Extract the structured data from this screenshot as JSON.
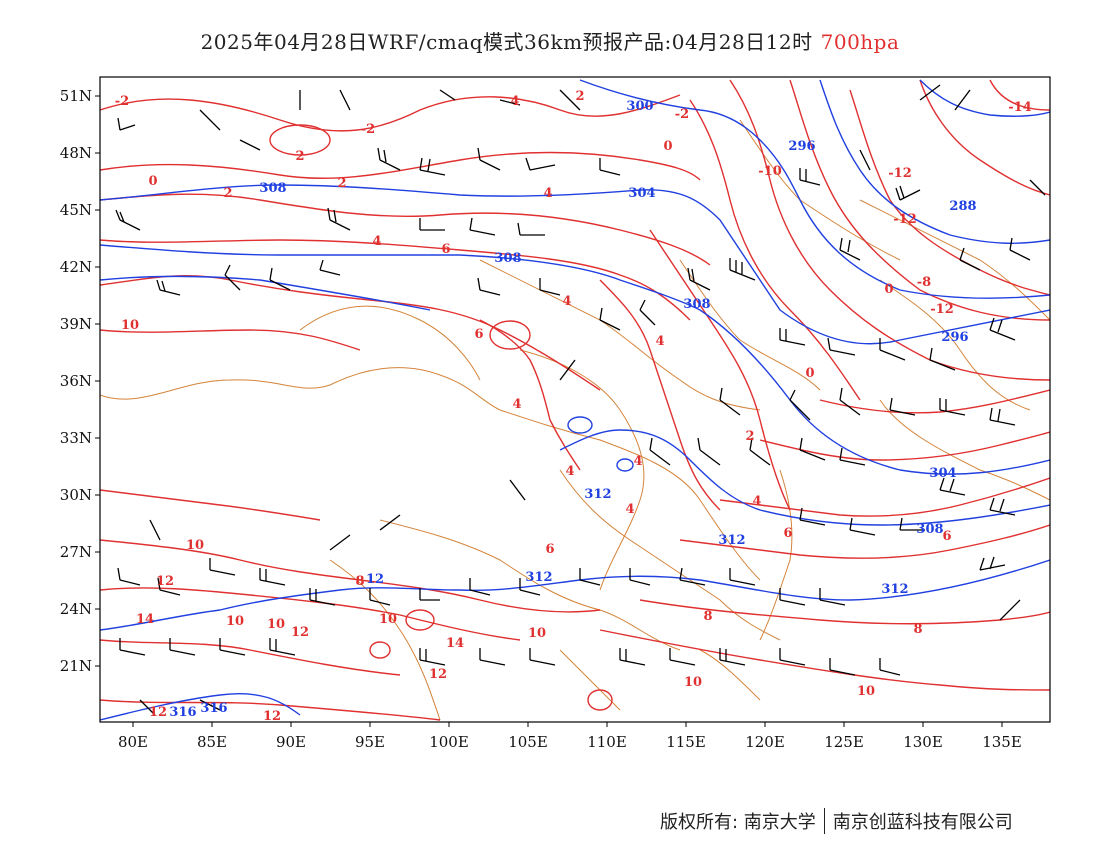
{
  "title": {
    "main": "2025年04月28日WRF/cmaq模式36km预报产品:04月28日12时",
    "level": "700hpa"
  },
  "axes": {
    "lon_labels": [
      "80E",
      "85E",
      "90E",
      "95E",
      "100E",
      "105E",
      "110E",
      "115E",
      "120E",
      "125E",
      "130E",
      "135E"
    ],
    "lat_labels": [
      "51N",
      "48N",
      "45N",
      "42N",
      "39N",
      "36N",
      "33N",
      "30N",
      "27N",
      "24N",
      "21N"
    ]
  },
  "colors": {
    "temperature_contour": "#e03030",
    "height_contour": "#2040e0",
    "boundary": "#d4843a",
    "wind_barb": "#000000"
  },
  "temperature_labels": [
    "-2",
    "4",
    "2",
    "-2",
    "2",
    "0",
    "2",
    "-2",
    "0",
    "2",
    "4",
    "6",
    "4",
    "4",
    "6",
    "4",
    "4",
    "4",
    "4",
    "6",
    "4",
    "6",
    "8",
    "10",
    "12",
    "14",
    "10",
    "10",
    "12",
    "10",
    "14",
    "12",
    "10",
    "12",
    "12",
    "10",
    "-12",
    "-12",
    "-10",
    "-14",
    "0",
    "-8",
    "-12",
    "0",
    "2",
    "4",
    "6",
    "8",
    "8",
    "10"
  ],
  "height_labels": [
    "300",
    "296",
    "308",
    "304",
    "308",
    "308",
    "296",
    "288",
    "312",
    "312",
    "312",
    "316",
    "316",
    "312",
    "304",
    "308"
  ],
  "footer": {
    "left": "版权所有: 南京大学",
    "right": "南京创蓝科技有限公司"
  }
}
